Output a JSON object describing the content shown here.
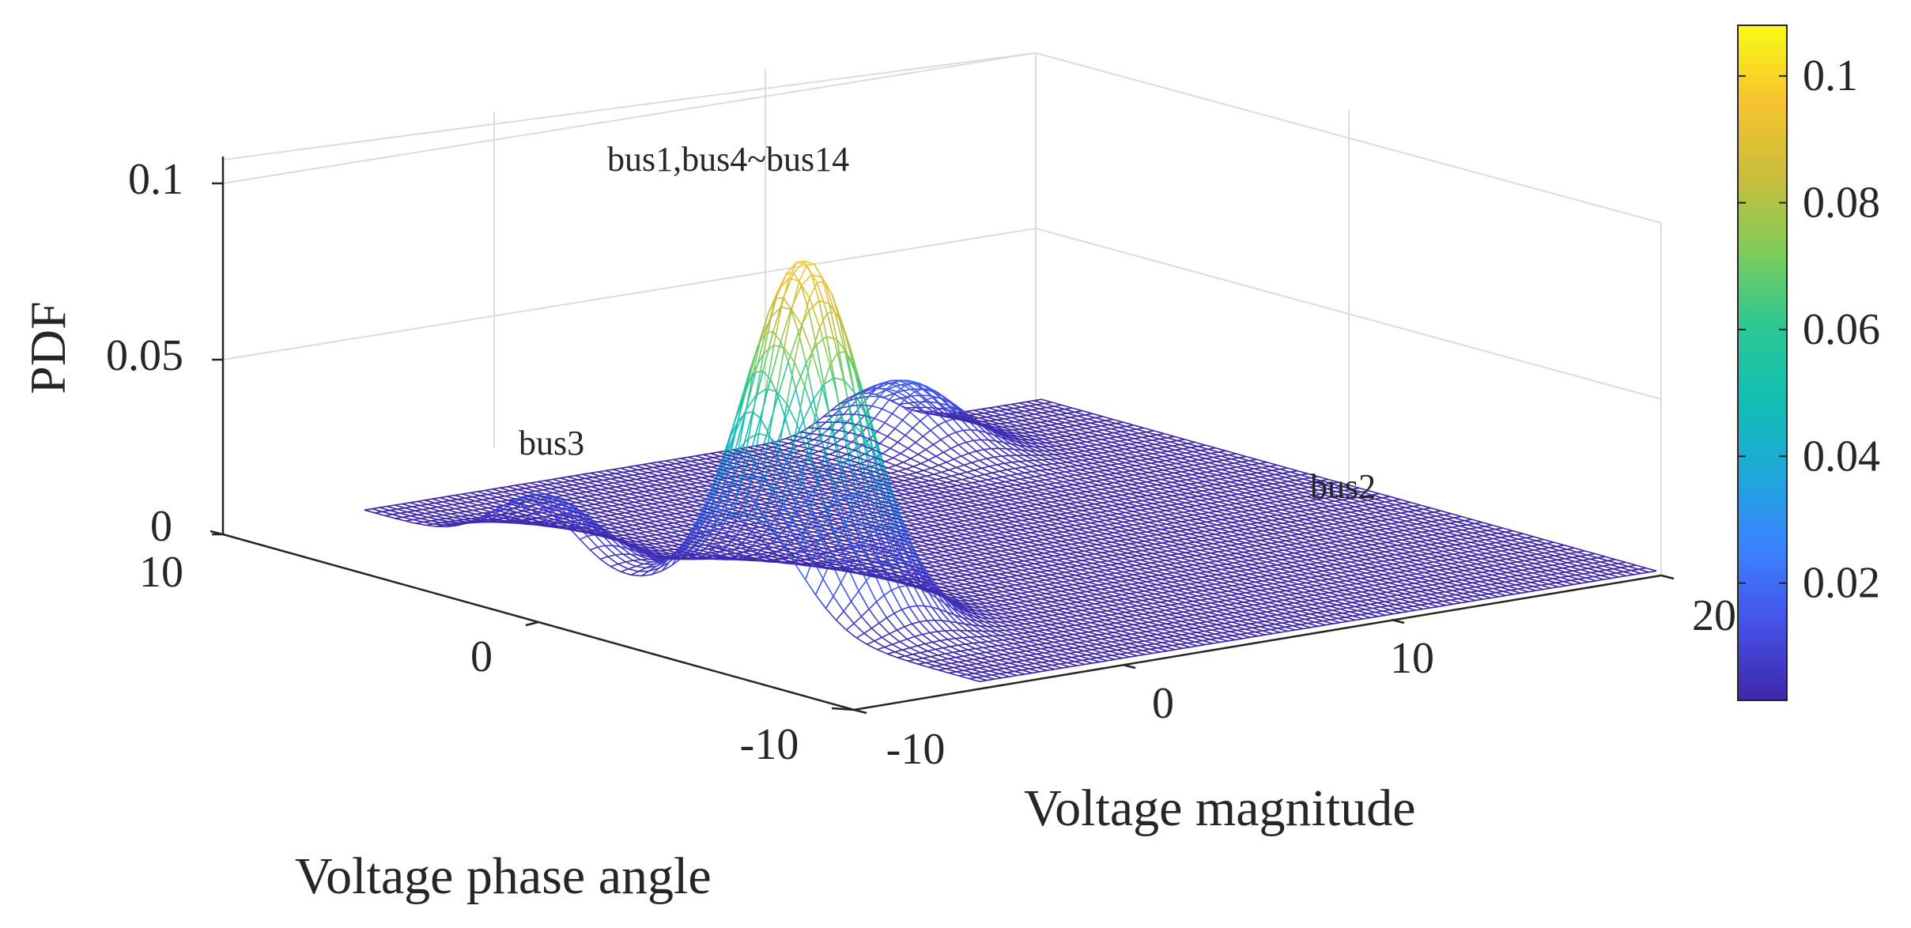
{
  "chart_data": {
    "type": "surface",
    "title": "",
    "xlabel": "Voltage magnitude",
    "ylabel": "Voltage phase angle",
    "zlabel": "PDF",
    "xlim": [
      -10,
      20
    ],
    "ylim": [
      -10,
      10
    ],
    "zlim": [
      0,
      0.1
    ],
    "x_ticks": [
      "-10",
      "0",
      "10",
      "20"
    ],
    "y_ticks": [
      "-10",
      "0",
      "10"
    ],
    "z_ticks": [
      "0",
      "0.05",
      "0.1"
    ],
    "colorbar": {
      "min": 0.0015,
      "max": 0.108,
      "ticks": [
        "0.02",
        "0.04",
        "0.06",
        "0.08",
        "0.1"
      ],
      "tick_values": [
        0.02,
        0.04,
        0.06,
        0.08,
        0.1
      ],
      "colormap": [
        "#3e26a8",
        "#4550e6",
        "#3b81ff",
        "#1fa8db",
        "#11bfb2",
        "#2dc892",
        "#81cc59",
        "#cbbd3a",
        "#f7c42f",
        "#f9fb15"
      ]
    },
    "peaks": [
      {
        "name": "bus1,bus4~bus14",
        "x": -7.5,
        "y": -2.5,
        "peak": 0.098,
        "sigma": 1.6
      },
      {
        "name": "bus3",
        "x": -9.5,
        "y": 4.5,
        "peak": 0.017,
        "sigma": 1.35
      },
      {
        "name": "bus2",
        "x": 12,
        "y": 8.5,
        "peak": 0.017,
        "sigma": 1.45
      }
    ],
    "grid": true,
    "legend": "colorbar-right"
  }
}
